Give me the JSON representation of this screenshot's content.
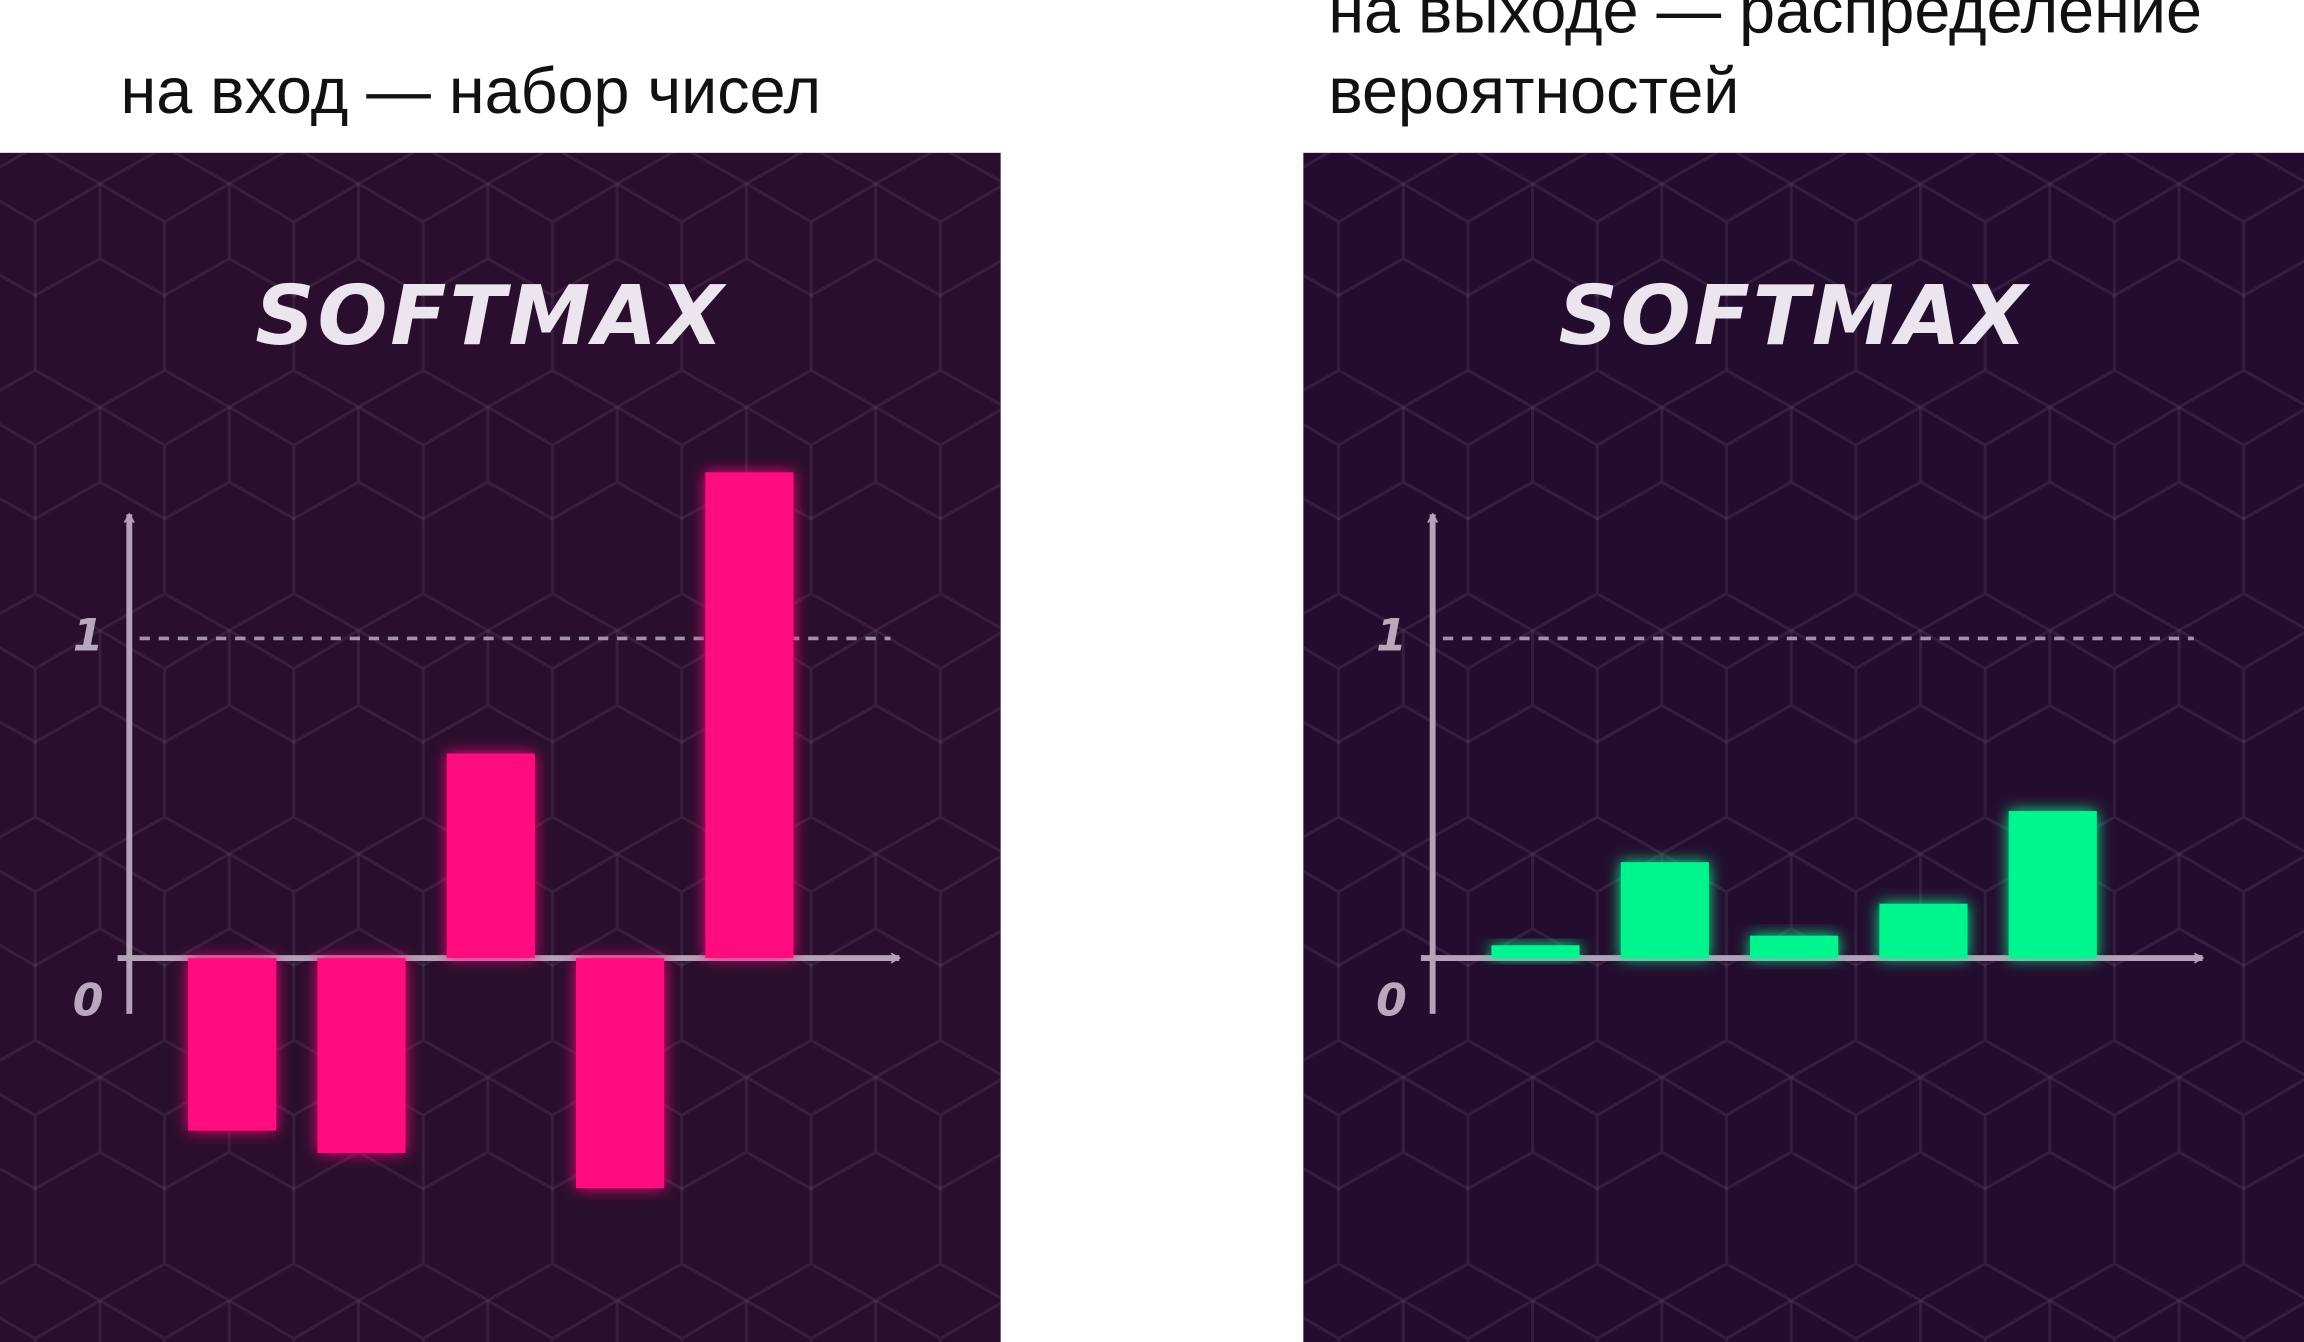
{
  "chart_data": [
    {
      "type": "bar",
      "caption": "на вход — набор чисел",
      "title": "SOFTMAX",
      "categories": [
        null,
        null,
        null,
        null,
        null
      ],
      "values": [
        -0.54,
        -0.61,
        0.64,
        -0.72,
        1.52
      ],
      "color": "#ff0a7e",
      "ylim": [
        -0.8,
        1.6
      ],
      "yticks": [
        0,
        1
      ]
    },
    {
      "type": "bar",
      "caption": "на выходе — распределение вероятностей",
      "title": "SOFTMAX",
      "categories": [
        null,
        null,
        null,
        null,
        null
      ],
      "values": [
        0.04,
        0.3,
        0.07,
        0.17,
        0.46
      ],
      "color": "#00f58f",
      "ylim": [
        -0.8,
        1.6
      ],
      "yticks": [
        0,
        1
      ]
    }
  ]
}
